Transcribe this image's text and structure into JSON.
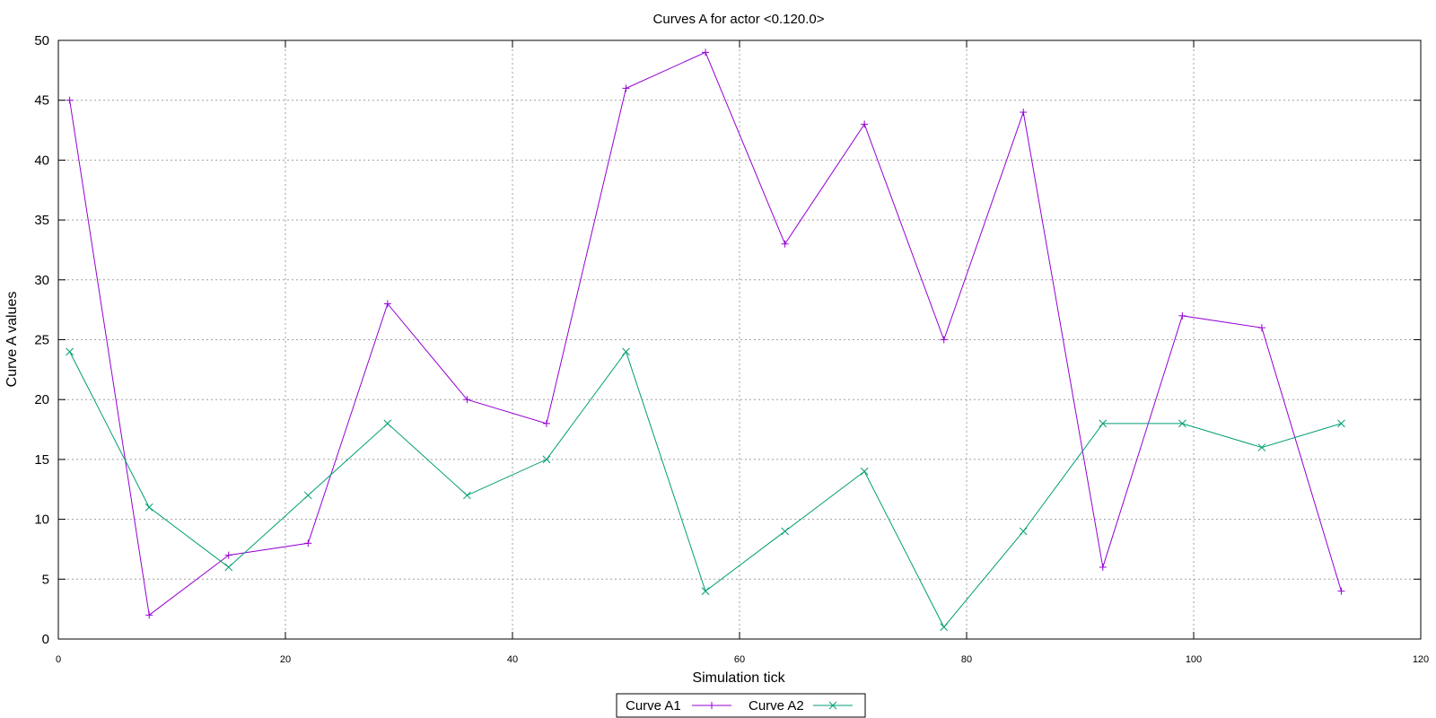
{
  "chart_data": {
    "type": "line",
    "title": "Curves A for actor <0.120.0>",
    "xlabel": "Simulation tick",
    "ylabel": "Curve A values",
    "xlim": [
      0,
      120
    ],
    "ylim": [
      0,
      50
    ],
    "xticks": [
      0,
      20,
      40,
      60,
      80,
      100,
      120
    ],
    "yticks": [
      0,
      5,
      10,
      15,
      20,
      25,
      30,
      35,
      40,
      45,
      50
    ],
    "grid": true,
    "legend_position": "bottom-center",
    "x": [
      1,
      8,
      15,
      22,
      29,
      36,
      43,
      50,
      57,
      64,
      71,
      78,
      85,
      92,
      99,
      106,
      113
    ],
    "series": [
      {
        "name": "Curve A1",
        "color": "#9400d3",
        "marker": "plus",
        "values": [
          45,
          2,
          7,
          8,
          28,
          20,
          18,
          46,
          49,
          33,
          43,
          25,
          44,
          6,
          27,
          26,
          4
        ]
      },
      {
        "name": "Curve A2",
        "color": "#009e73",
        "marker": "cross",
        "values": [
          24,
          11,
          6,
          12,
          18,
          12,
          15,
          24,
          4,
          9,
          14,
          1,
          9,
          18,
          18,
          16,
          18
        ]
      }
    ]
  }
}
